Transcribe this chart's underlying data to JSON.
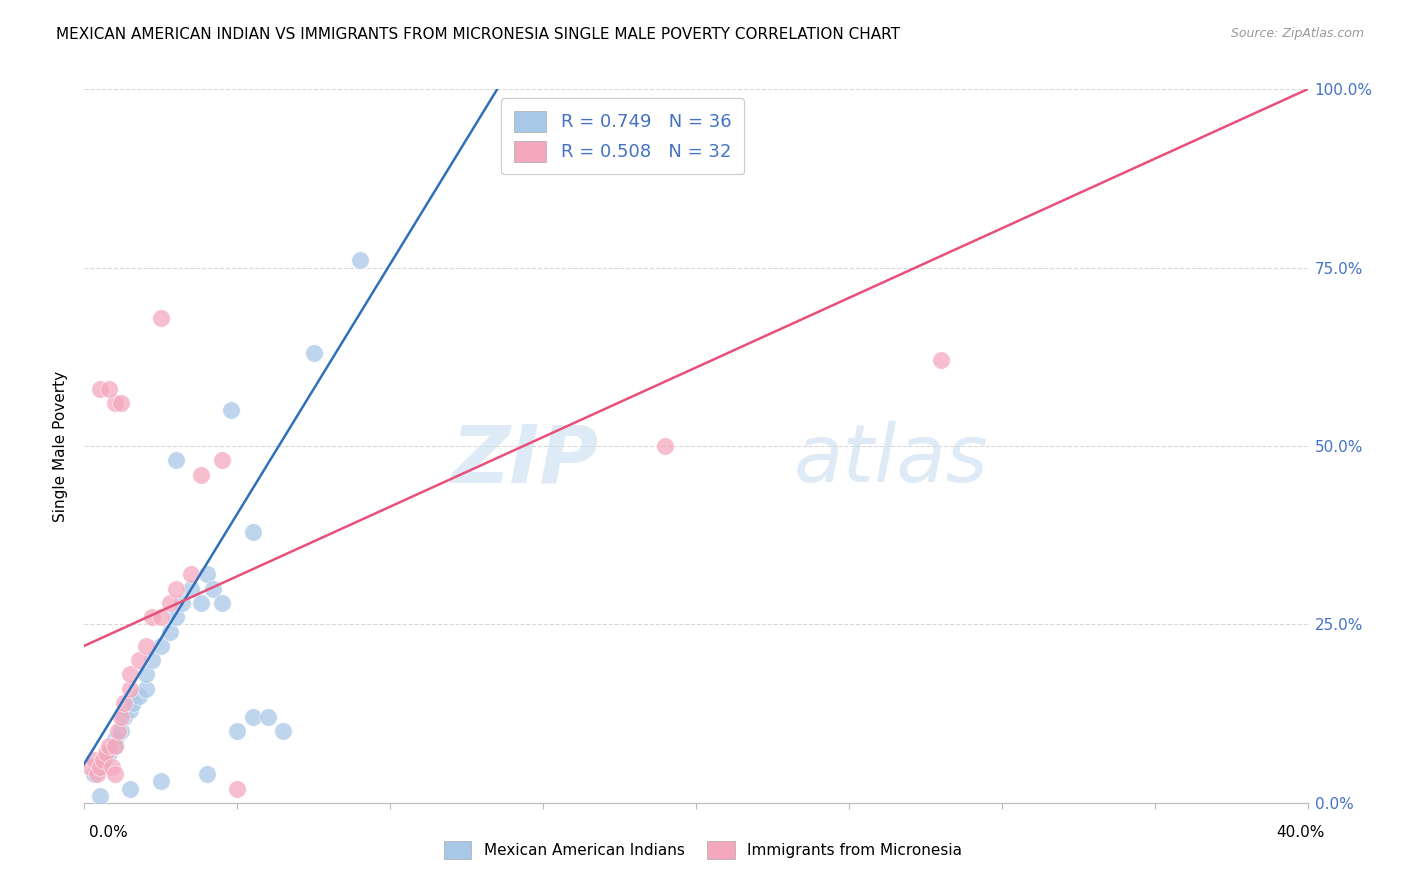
{
  "title": "MEXICAN AMERICAN INDIAN VS IMMIGRANTS FROM MICRONESIA SINGLE MALE POVERTY CORRELATION CHART",
  "source": "Source: ZipAtlas.com",
  "ylabel": "Single Male Poverty",
  "ytick_values": [
    0,
    25,
    50,
    75,
    100
  ],
  "xmin": 0,
  "xmax": 40,
  "ymin": 0,
  "ymax": 100,
  "legend1_label": "R = 0.749   N = 36",
  "legend2_label": "R = 0.508   N = 32",
  "watermark_zip": "ZIP",
  "watermark_atlas": "atlas",
  "blue_color": "#a8c8e8",
  "pink_color": "#f4a8be",
  "blue_line_color": "#3070b8",
  "pink_line_color": "#e8507a",
  "blue_scatter": [
    [
      0.3,
      4
    ],
    [
      0.5,
      5
    ],
    [
      0.6,
      6
    ],
    [
      0.8,
      7
    ],
    [
      1.0,
      8
    ],
    [
      1.0,
      9
    ],
    [
      1.2,
      10
    ],
    [
      1.3,
      12
    ],
    [
      1.5,
      13
    ],
    [
      1.6,
      14
    ],
    [
      1.8,
      15
    ],
    [
      2.0,
      16
    ],
    [
      2.0,
      18
    ],
    [
      2.2,
      20
    ],
    [
      2.5,
      22
    ],
    [
      2.8,
      24
    ],
    [
      3.0,
      26
    ],
    [
      3.2,
      28
    ],
    [
      3.5,
      30
    ],
    [
      3.8,
      28
    ],
    [
      4.0,
      32
    ],
    [
      4.2,
      30
    ],
    [
      4.5,
      28
    ],
    [
      5.0,
      10
    ],
    [
      5.5,
      12
    ],
    [
      6.0,
      12
    ],
    [
      6.5,
      10
    ],
    [
      3.0,
      48
    ],
    [
      4.8,
      55
    ],
    [
      5.5,
      38
    ],
    [
      7.5,
      63
    ],
    [
      9.0,
      76
    ],
    [
      0.5,
      1
    ],
    [
      1.5,
      2
    ],
    [
      2.5,
      3
    ],
    [
      4.0,
      4
    ]
  ],
  "pink_scatter": [
    [
      0.2,
      5
    ],
    [
      0.3,
      6
    ],
    [
      0.4,
      4
    ],
    [
      0.5,
      5
    ],
    [
      0.6,
      6
    ],
    [
      0.7,
      7
    ],
    [
      0.8,
      8
    ],
    [
      0.9,
      5
    ],
    [
      1.0,
      4
    ],
    [
      1.0,
      8
    ],
    [
      1.1,
      10
    ],
    [
      1.2,
      12
    ],
    [
      1.3,
      14
    ],
    [
      1.5,
      16
    ],
    [
      1.5,
      18
    ],
    [
      1.8,
      20
    ],
    [
      2.0,
      22
    ],
    [
      2.2,
      26
    ],
    [
      2.5,
      26
    ],
    [
      2.8,
      28
    ],
    [
      3.0,
      30
    ],
    [
      3.5,
      32
    ],
    [
      1.0,
      56
    ],
    [
      1.2,
      56
    ],
    [
      2.5,
      68
    ],
    [
      3.8,
      46
    ],
    [
      4.5,
      48
    ],
    [
      0.5,
      58
    ],
    [
      0.8,
      58
    ],
    [
      19.0,
      50
    ],
    [
      28.0,
      62
    ],
    [
      5.0,
      2
    ]
  ],
  "blue_line_x": [
    -1.5,
    13.5
  ],
  "blue_line_y": [
    -5,
    100
  ],
  "pink_line_x": [
    0,
    40
  ],
  "pink_line_y": [
    22,
    100
  ],
  "background_color": "#ffffff",
  "grid_color": "#d8d8d8"
}
